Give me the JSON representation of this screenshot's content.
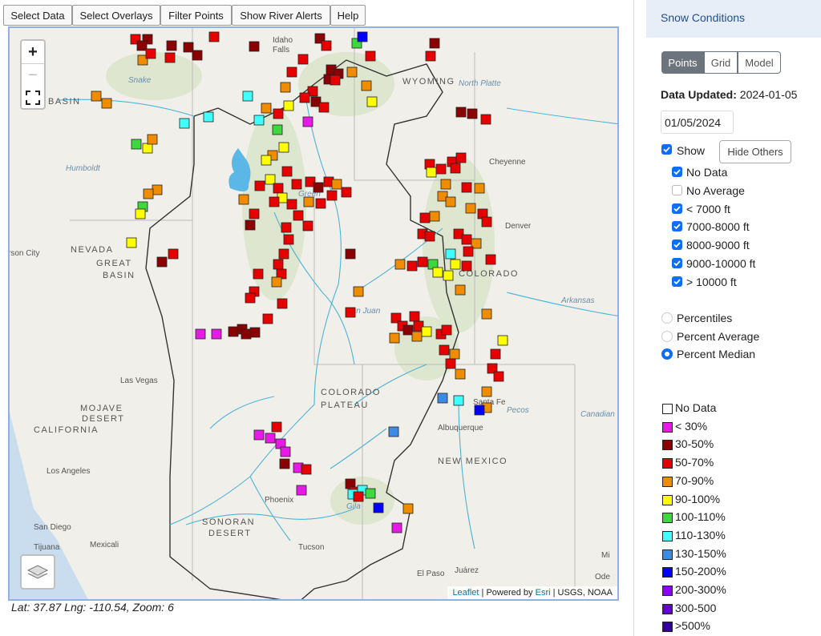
{
  "toolbar": {
    "buttons": [
      "Select Data",
      "Select Overlays",
      "Filter Points",
      "Show River Alerts",
      "Help"
    ]
  },
  "map": {
    "zoom_in": "+",
    "zoom_out": "−",
    "labels": [
      "Idaho",
      "Falls",
      "WYOMING",
      "North Platte",
      "BASIN",
      "Snake",
      "Cheyenne",
      "Humboldt",
      "NEVADA",
      "GREAT",
      "BASIN",
      "rson City",
      "Denver",
      "COLORADO",
      "Arkansas",
      "San Juan",
      "Las Vegas",
      "MOJAVE",
      "DESERT",
      "CALIFORNIA",
      "COLORADO",
      "PLATEAU",
      "Santa Fe",
      "Albuquerque",
      "Canadian",
      "NEW MEXICO",
      "Los Angeles",
      "Phoenix",
      "SONORAN",
      "DESERT",
      "San Diego",
      "Tijuana",
      "Mexicali",
      "Tucson",
      "El Paso",
      "Juárez",
      "Mi",
      "Ode",
      "Green",
      "Gila",
      "Pecos"
    ],
    "attribution": {
      "leaflet": "Leaflet",
      "powered": "| Powered by",
      "esri": "Esri",
      "sources": "| USGS, NOAA"
    }
  },
  "status": "Lat: 37.87 Lng: -110.54, Zoom: 6",
  "sidebar": {
    "title": "Snow Conditions",
    "tabs": [
      {
        "label": "Points",
        "active": true
      },
      {
        "label": "Grid",
        "active": false
      },
      {
        "label": "Model",
        "active": false
      }
    ],
    "data_updated_label": "Data Updated:",
    "data_updated_value": "2024-01-05",
    "date_input": "01/05/2024",
    "show": {
      "label": "Show",
      "checked": true
    },
    "hide_others": "Hide Others",
    "filters": [
      {
        "label": "No Data",
        "checked": true
      },
      {
        "label": "No Average",
        "checked": false
      },
      {
        "label": "< 7000 ft",
        "checked": true
      },
      {
        "label": "7000-8000 ft",
        "checked": true
      },
      {
        "label": "8000-9000 ft",
        "checked": true
      },
      {
        "label": "9000-10000 ft",
        "checked": true
      },
      {
        "label": "> 10000 ft",
        "checked": true
      }
    ],
    "modes": [
      {
        "label": "Percentiles",
        "selected": false
      },
      {
        "label": "Percent Average",
        "selected": false
      },
      {
        "label": "Percent Median",
        "selected": true
      }
    ],
    "legend": [
      {
        "label": "No Data",
        "color": "#ffffff"
      },
      {
        "label": "< 30%",
        "color": "#e619e6"
      },
      {
        "label": "30-50%",
        "color": "#8b0000"
      },
      {
        "label": "50-70%",
        "color": "#e60000"
      },
      {
        "label": "70-90%",
        "color": "#f08c00"
      },
      {
        "label": "90-100%",
        "color": "#ffff00"
      },
      {
        "label": "100-110%",
        "color": "#3dd83d"
      },
      {
        "label": "110-130%",
        "color": "#40ffff"
      },
      {
        "label": "130-150%",
        "color": "#3c8ce6"
      },
      {
        "label": "150-200%",
        "color": "#0000ff"
      },
      {
        "label": "200-300%",
        "color": "#8c00ff"
      },
      {
        "label": "300-500",
        "color": "#6600cc"
      },
      {
        "label": ">500%",
        "color": "#330099"
      }
    ]
  }
}
